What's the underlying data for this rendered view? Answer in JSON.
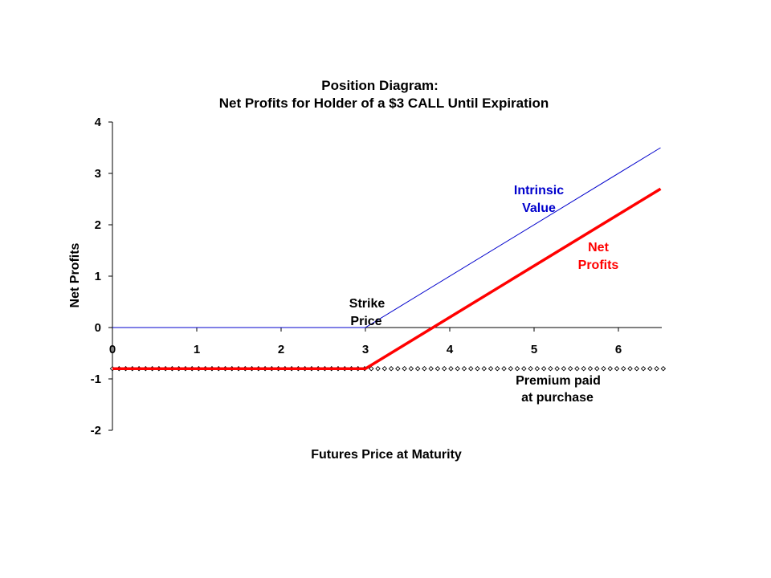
{
  "chart_data": {
    "type": "line",
    "title_line1": "Position Diagram:",
    "title_line2": "Net Profits for Holder of a $3 CALL Until Expiration",
    "xlabel": "Futures Price at Maturity",
    "ylabel": "Net Profits",
    "xlim": [
      0,
      6.5
    ],
    "ylim": [
      -2,
      4
    ],
    "x_ticks": [
      "0",
      "1",
      "2",
      "3",
      "4",
      "5",
      "6"
    ],
    "y_ticks": [
      "4",
      "3",
      "2",
      "1",
      "0",
      "-1",
      "-2"
    ],
    "grid": false,
    "legend": "none",
    "series": [
      {
        "key": "intrinsic",
        "color": "#0000cc",
        "points": [
          [
            0,
            0
          ],
          [
            3,
            0
          ],
          [
            6.5,
            3.5
          ]
        ]
      },
      {
        "key": "net",
        "color": "#ff0000",
        "points": [
          [
            0,
            -0.8
          ],
          [
            3,
            -0.8
          ],
          [
            6.5,
            2.7
          ]
        ]
      },
      {
        "key": "premium",
        "color": "#000000",
        "style": "dotted-markers",
        "y": -0.8,
        "x_range": [
          0,
          6.5
        ],
        "step": 0.0787
      }
    ],
    "annotations": {
      "intrinsic_1": "Intrinsic",
      "intrinsic_2": "Value",
      "net_1": "Net",
      "net_2": "Profits",
      "strike_1": "Strike",
      "strike_2": "Price",
      "premium_1": "Premium paid",
      "premium_2": "at purchase"
    },
    "annotation_colors": {
      "intrinsic": "#0000cc",
      "net": "#ff0000",
      "strike": "#000000",
      "premium": "#000000"
    }
  }
}
